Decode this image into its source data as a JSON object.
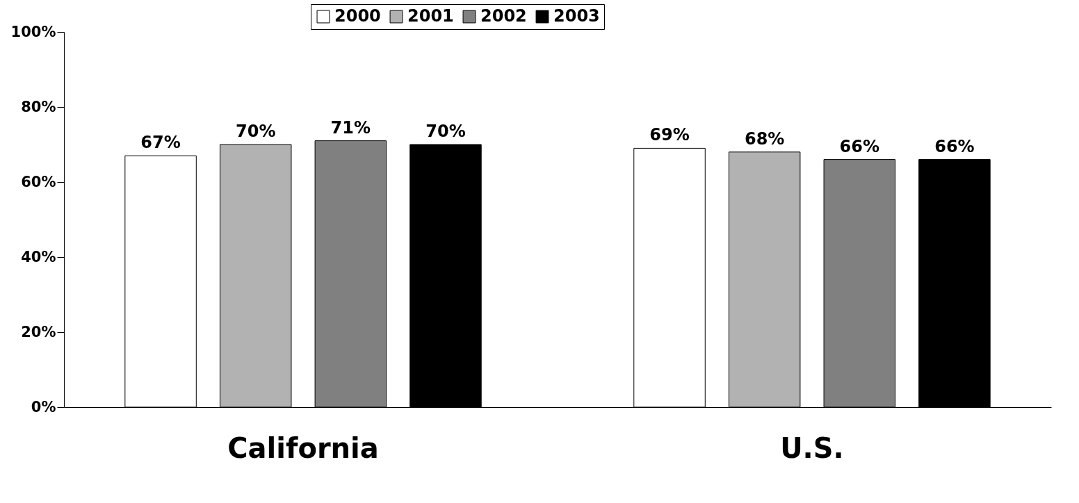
{
  "chart_data": {
    "type": "bar",
    "categories": [
      "California",
      "U.S."
    ],
    "series": [
      {
        "name": "2000",
        "color": "#ffffff",
        "values": [
          67,
          69
        ],
        "value_labels": [
          "67%",
          "69%"
        ]
      },
      {
        "name": "2001",
        "color": "#b2b2b2",
        "values": [
          70,
          68
        ],
        "value_labels": [
          "70%",
          "68%"
        ]
      },
      {
        "name": "2002",
        "color": "#808080",
        "values": [
          71,
          66
        ],
        "value_labels": [
          "71%",
          "66%"
        ]
      },
      {
        "name": "2003",
        "color": "#000000",
        "values": [
          70,
          66
        ],
        "value_labels": [
          "70%",
          "66%"
        ]
      }
    ],
    "ylim": [
      0,
      100
    ],
    "yticks": [
      {
        "value": 0,
        "label": "0%"
      },
      {
        "value": 20,
        "label": "20%"
      },
      {
        "value": 40,
        "label": "40%"
      },
      {
        "value": 60,
        "label": "60%"
      },
      {
        "value": 80,
        "label": "80%"
      },
      {
        "value": 100,
        "label": "100%"
      }
    ],
    "grid": false,
    "legend": "top"
  }
}
